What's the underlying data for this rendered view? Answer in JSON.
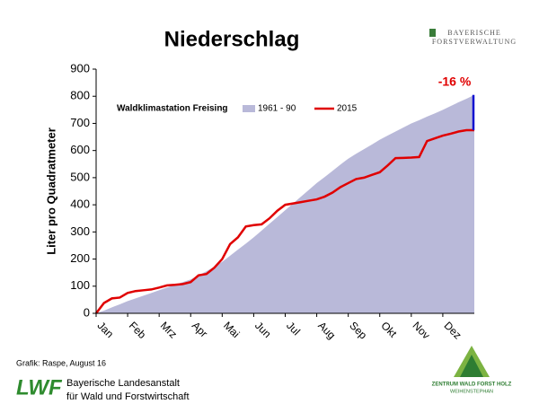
{
  "chart_data": {
    "type": "line",
    "title": "Niederschlag",
    "ylabel": "Liter pro Quadratmeter",
    "legend_title": "Waldklimastation Freising",
    "annotation": "-16 %",
    "categories": [
      "Jan",
      null,
      null,
      null,
      "Feb",
      null,
      null,
      null,
      "Mrz",
      null,
      null,
      null,
      "Apr",
      null,
      null,
      null,
      "Mai",
      null,
      null,
      null,
      "Jun",
      null,
      null,
      null,
      "Jul",
      null,
      null,
      null,
      "Aug",
      null,
      null,
      null,
      "Sep",
      null,
      null,
      null,
      "Okt",
      null,
      null,
      null,
      "Nov",
      null,
      null,
      null,
      "Dez",
      null,
      null,
      null,
      null
    ],
    "series": [
      {
        "name": "1961 - 90",
        "color": "#b9b9d9",
        "style": "area",
        "values": [
          0,
          10,
          22,
          33,
          45,
          55,
          65,
          75,
          85,
          95,
          105,
          115,
          125,
          140,
          155,
          172,
          190,
          212,
          235,
          257,
          280,
          305,
          330,
          355,
          380,
          405,
          430,
          455,
          480,
          502,
          525,
          548,
          570,
          588,
          605,
          622,
          640,
          655,
          670,
          685,
          700,
          712,
          725,
          737,
          750,
          764,
          778,
          791,
          805
        ]
      },
      {
        "name": "2015",
        "color": "#e00000",
        "style": "line",
        "values": [
          0,
          38,
          55,
          58,
          75,
          82,
          85,
          88,
          95,
          103,
          105,
          108,
          115,
          140,
          145,
          168,
          200,
          255,
          280,
          320,
          325,
          328,
          350,
          378,
          400,
          405,
          410,
          415,
          420,
          430,
          445,
          465,
          480,
          495,
          500,
          510,
          520,
          545,
          572,
          573,
          574,
          576,
          635,
          645,
          655,
          662,
          670,
          675,
          675
        ]
      }
    ],
    "ylim": [
      0,
      900
    ],
    "yticks": [
      0,
      100,
      200,
      300,
      400,
      500,
      600,
      700,
      800,
      900
    ],
    "grid": false
  },
  "header": {
    "org_line1": "BAYERISCHE",
    "org_line2": "FORSTVERWALTUNG"
  },
  "footer": {
    "credit": "Grafik: Raspe, August 16",
    "logo": "LWF",
    "inst_line1": "Bayerische Landesanstalt",
    "inst_line2": "für Wald und Forstwirtschaft",
    "center_line1": "ZENTRUM WALD FORST HOLZ",
    "center_line2": "WEIHENSTEPHAN"
  }
}
